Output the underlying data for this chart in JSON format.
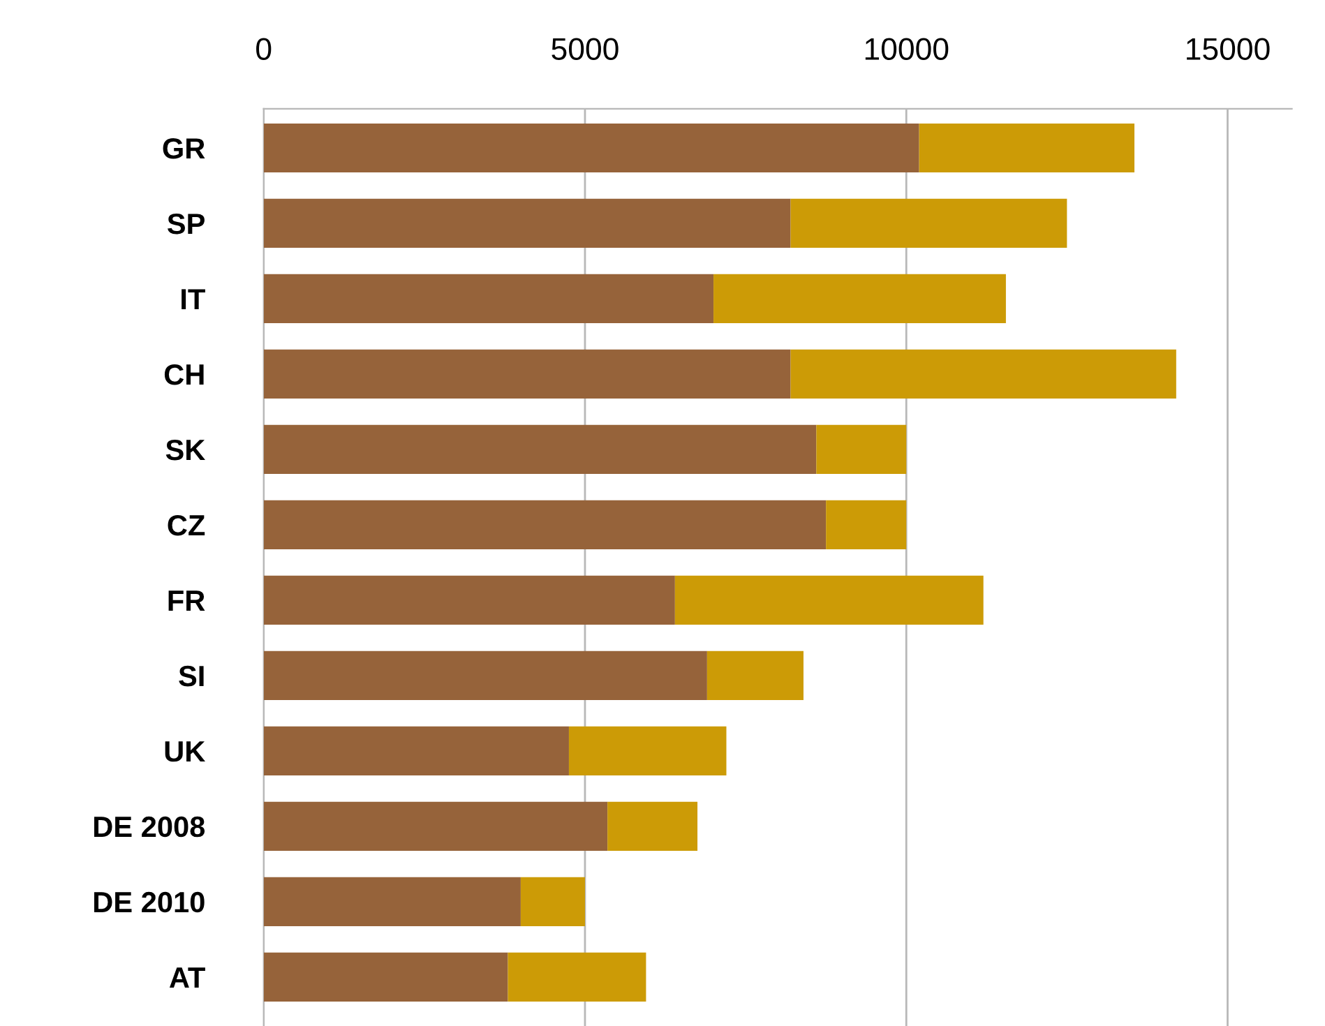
{
  "chart_data": {
    "type": "bar",
    "orientation": "horizontal",
    "stacked": true,
    "categories": [
      "GR",
      "SP",
      "IT",
      "CH",
      "SK",
      "CZ",
      "FR",
      "SI",
      "UK",
      "DE 2008",
      "DE 2010",
      "AT"
    ],
    "series": [
      {
        "color": "#96633a",
        "values": [
          10200,
          8200,
          7000,
          8200,
          8600,
          8750,
          6400,
          6900,
          4750,
          5350,
          4000,
          3800
        ]
      },
      {
        "color": "#cc9b06",
        "values": [
          3350,
          4300,
          4550,
          6000,
          1400,
          1250,
          4800,
          1500,
          2450,
          1400,
          1000,
          2150
        ]
      }
    ],
    "xlim": [
      0,
      16000
    ],
    "xticks": [
      0,
      5000,
      10000,
      15000
    ],
    "grid": "x"
  }
}
